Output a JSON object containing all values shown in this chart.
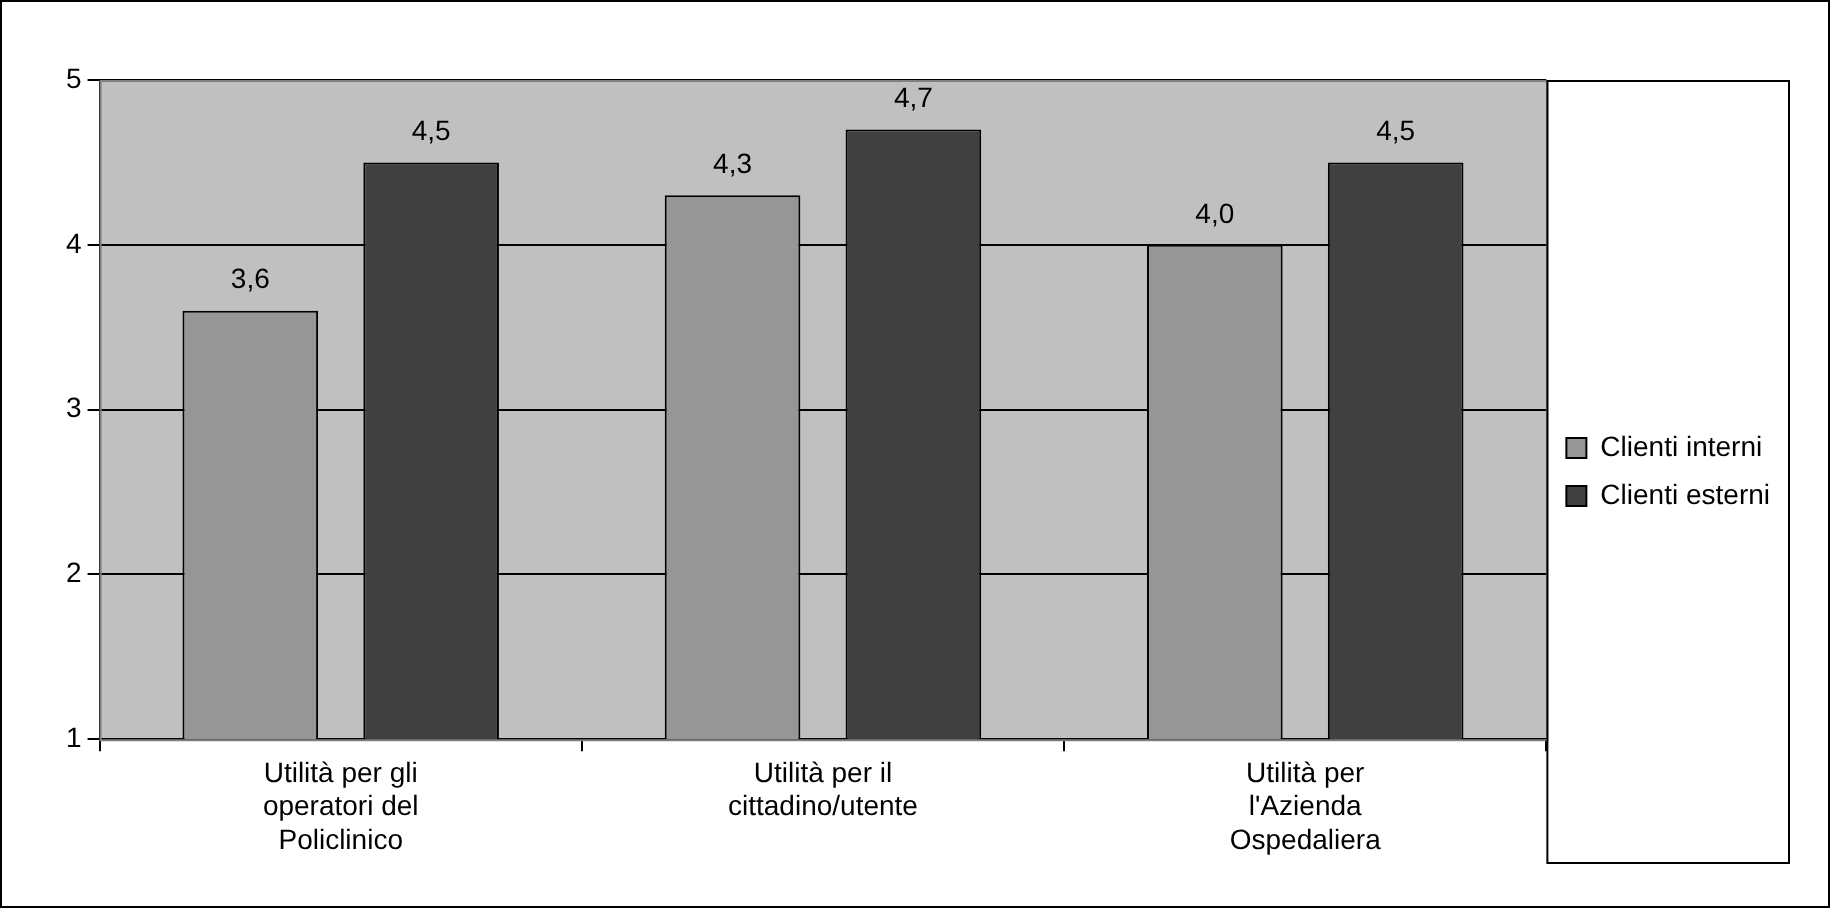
{
  "chart_data": {
    "type": "bar",
    "categories": [
      "Utilità per gli operatori del Policlinico",
      "Utilità per il cittadino/utente",
      "Utilità per l'Azienda Ospedaliera"
    ],
    "series": [
      {
        "name": "Clienti interni",
        "color": "#969696",
        "values": [
          3.6,
          4.3,
          4.0
        ],
        "value_labels": [
          "3,6",
          "4,3",
          "4,0"
        ]
      },
      {
        "name": "Clienti esterni",
        "color": "#404040",
        "values": [
          4.5,
          4.7,
          4.5
        ],
        "value_labels": [
          "4,5",
          "4,7",
          "4,5"
        ]
      }
    ],
    "ylim": [
      1,
      5
    ],
    "yticks": [
      1,
      2,
      3,
      4,
      5
    ],
    "grid": "y",
    "legend": "right"
  }
}
